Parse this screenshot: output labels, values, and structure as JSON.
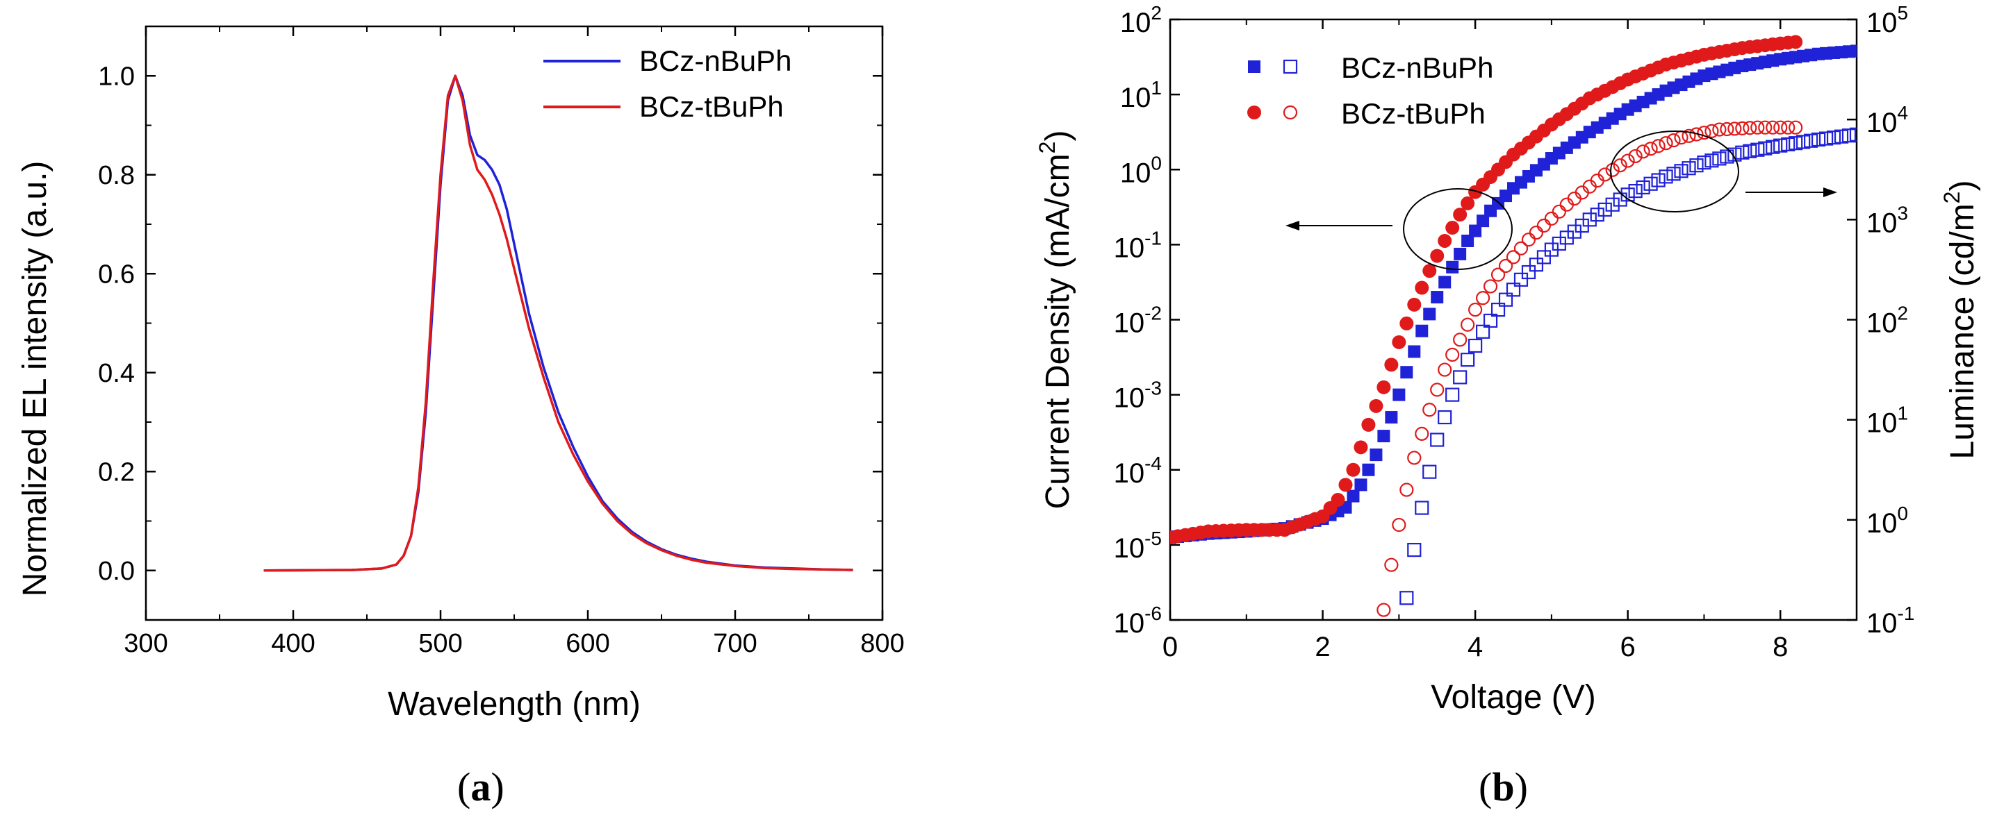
{
  "chart_data": [
    {
      "type": "line",
      "panel": "a",
      "xlabel": "Wavelength (nm)",
      "ylabel": "Normalized EL intensity (a.u.)",
      "xlim": [
        300,
        800
      ],
      "ylim": [
        -0.1,
        1.1
      ],
      "xticks": [
        300,
        400,
        500,
        600,
        700,
        800
      ],
      "xtick_labels": [
        "300",
        "400",
        "500",
        "600",
        "700",
        "800"
      ],
      "yticks": [
        0.0,
        0.2,
        0.4,
        0.6,
        0.8,
        1.0
      ],
      "ytick_labels": [
        "0.0",
        "0.2",
        "0.4",
        "0.6",
        "0.8",
        "1.0"
      ],
      "legend_position": "top-right",
      "series": [
        {
          "name": "BCz-nBuPh",
          "color": "#1f22d6",
          "x": [
            380,
            440,
            460,
            470,
            475,
            480,
            485,
            490,
            495,
            500,
            505,
            510,
            515,
            520,
            525,
            530,
            535,
            540,
            545,
            550,
            555,
            560,
            570,
            580,
            590,
            600,
            610,
            620,
            630,
            640,
            650,
            660,
            670,
            680,
            700,
            720,
            740,
            760,
            780
          ],
          "y": [
            0,
            0.001,
            0.004,
            0.012,
            0.03,
            0.07,
            0.16,
            0.32,
            0.55,
            0.78,
            0.95,
            1.0,
            0.96,
            0.88,
            0.84,
            0.83,
            0.81,
            0.78,
            0.73,
            0.66,
            0.59,
            0.52,
            0.41,
            0.32,
            0.25,
            0.19,
            0.14,
            0.105,
            0.078,
            0.058,
            0.043,
            0.032,
            0.024,
            0.018,
            0.01,
            0.006,
            0.004,
            0.002,
            0.001
          ]
        },
        {
          "name": "BCz-tBuPh",
          "color": "#e01a1a",
          "x": [
            380,
            440,
            460,
            470,
            475,
            480,
            485,
            490,
            495,
            500,
            505,
            510,
            515,
            520,
            525,
            530,
            535,
            540,
            545,
            550,
            555,
            560,
            570,
            580,
            590,
            600,
            610,
            620,
            630,
            640,
            650,
            660,
            670,
            680,
            700,
            720,
            740,
            760,
            780
          ],
          "y": [
            0,
            0.001,
            0.004,
            0.012,
            0.03,
            0.07,
            0.17,
            0.34,
            0.58,
            0.8,
            0.96,
            1.0,
            0.95,
            0.86,
            0.81,
            0.79,
            0.76,
            0.72,
            0.67,
            0.61,
            0.55,
            0.49,
            0.39,
            0.3,
            0.235,
            0.18,
            0.135,
            0.1,
            0.074,
            0.055,
            0.041,
            0.03,
            0.022,
            0.016,
            0.009,
            0.005,
            0.003,
            0.002,
            0.001
          ]
        }
      ]
    },
    {
      "type": "scatter",
      "panel": "b",
      "xlabel": "Voltage (V)",
      "ylabel_left": "Current Density (mA/cm2)",
      "ylabel_left_parts": [
        "Current Density (mA/cm",
        "2",
        ")"
      ],
      "ylabel_right": "Luminance (cd/m2)",
      "ylabel_right_parts": [
        "Luminance (cd/m",
        "2",
        ")"
      ],
      "xlim": [
        0,
        9
      ],
      "xticks": [
        0,
        2,
        4,
        6,
        8
      ],
      "xtick_labels": [
        "0",
        "2",
        "4",
        "6",
        "8"
      ],
      "ylim_left_log": [
        -6,
        2
      ],
      "left_tick_exponents": [
        -6,
        -5,
        -4,
        -3,
        -2,
        -1,
        0,
        1,
        2
      ],
      "left_tick_labels": [
        {
          "base": "10",
          "exp": "-6"
        },
        {
          "base": "10",
          "exp": "-5"
        },
        {
          "base": "10",
          "exp": "-4"
        },
        {
          "base": "10",
          "exp": "-3"
        },
        {
          "base": "10",
          "exp": "-2"
        },
        {
          "base": "10",
          "exp": "-1"
        },
        {
          "base": "10",
          "exp": "0"
        },
        {
          "base": "10",
          "exp": "1"
        },
        {
          "base": "10",
          "exp": "2"
        }
      ],
      "ylim_right_log": [
        -1,
        5
      ],
      "right_tick_exponents": [
        -1,
        0,
        1,
        2,
        3,
        4,
        5
      ],
      "right_tick_labels": [
        {
          "base": "10",
          "exp": "-1"
        },
        {
          "base": "10",
          "exp": "0"
        },
        {
          "base": "10",
          "exp": "1"
        },
        {
          "base": "10",
          "exp": "2"
        },
        {
          "base": "10",
          "exp": "3"
        },
        {
          "base": "10",
          "exp": "4"
        },
        {
          "base": "10",
          "exp": "5"
        }
      ],
      "legend_position": "top-left",
      "annotations": [
        {
          "text": "",
          "points_to": "left axis",
          "type": "ellipse-arrow"
        },
        {
          "text": "",
          "points_to": "right axis",
          "type": "ellipse-arrow"
        }
      ],
      "series": [
        {
          "name": "BCz-nBuPh",
          "quantity": "current density",
          "axis": "left",
          "marker": "filled-square",
          "color": "#1f22d6",
          "x": [
            0,
            0.5,
            1.0,
            1.5,
            2.0,
            2.3,
            2.5,
            2.7,
            2.9,
            3.1,
            3.3,
            3.5,
            3.7,
            3.9,
            4.2,
            4.5,
            5.0,
            5.5,
            6.0,
            6.5,
            7.0,
            7.5,
            8.0,
            8.5,
            9.0
          ],
          "y_log10": [
            -4.9,
            -4.85,
            -4.82,
            -4.78,
            -4.65,
            -4.5,
            -4.2,
            -3.8,
            -3.3,
            -2.7,
            -2.15,
            -1.7,
            -1.3,
            -0.95,
            -0.55,
            -0.25,
            0.15,
            0.5,
            0.8,
            1.05,
            1.25,
            1.38,
            1.47,
            1.54,
            1.58
          ]
        },
        {
          "name": "BCz-tBuPh",
          "quantity": "current density",
          "axis": "left",
          "marker": "filled-circle",
          "color": "#e01a1a",
          "x": [
            0,
            0.5,
            1.0,
            1.5,
            2.0,
            2.2,
            2.4,
            2.6,
            2.8,
            3.0,
            3.2,
            3.4,
            3.6,
            3.8,
            4.0,
            4.5,
            5.0,
            5.5,
            6.0,
            6.5,
            7.0,
            7.5,
            8.0,
            8.2
          ],
          "y_log10": [
            -4.9,
            -4.82,
            -4.8,
            -4.8,
            -4.62,
            -4.4,
            -4.0,
            -3.4,
            -2.9,
            -2.3,
            -1.8,
            -1.35,
            -0.95,
            -0.6,
            -0.3,
            0.2,
            0.6,
            0.95,
            1.2,
            1.4,
            1.53,
            1.62,
            1.68,
            1.7
          ]
        },
        {
          "name": "BCz-nBuPh",
          "quantity": "luminance",
          "axis": "right",
          "marker": "open-square",
          "color": "#1f22d6",
          "x": [
            3.1,
            3.2,
            3.3,
            3.4,
            3.5,
            3.7,
            3.9,
            4.1,
            4.3,
            4.6,
            5.0,
            5.5,
            6.0,
            6.5,
            7.0,
            7.5,
            8.0,
            8.5,
            9.0
          ],
          "y_log10": [
            -0.78,
            -0.3,
            0.12,
            0.48,
            0.8,
            1.25,
            1.6,
            1.88,
            2.1,
            2.4,
            2.7,
            3.0,
            3.25,
            3.43,
            3.57,
            3.67,
            3.74,
            3.8,
            3.85
          ]
        },
        {
          "name": "BCz-tBuPh",
          "quantity": "luminance",
          "axis": "right",
          "marker": "open-circle",
          "color": "#e01a1a",
          "x": [
            2.8,
            2.9,
            3.0,
            3.1,
            3.2,
            3.4,
            3.6,
            3.8,
            4.0,
            4.3,
            4.7,
            5.2,
            5.7,
            6.2,
            6.7,
            7.2,
            7.7,
            8.2
          ],
          "y_log10": [
            -0.9,
            -0.45,
            -0.05,
            0.3,
            0.62,
            1.1,
            1.5,
            1.8,
            2.1,
            2.45,
            2.8,
            3.15,
            3.45,
            3.68,
            3.82,
            3.9,
            3.92,
            3.92
          ]
        }
      ]
    }
  ],
  "panels": {
    "a": {
      "label": "a"
    },
    "b": {
      "label": "b"
    }
  }
}
